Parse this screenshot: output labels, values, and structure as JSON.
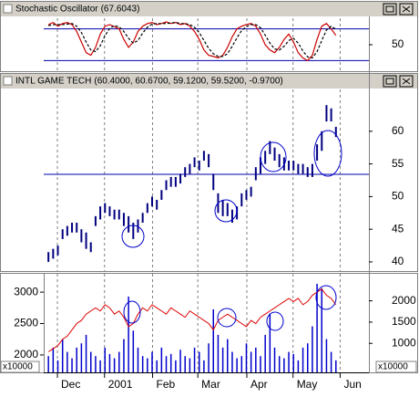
{
  "chart_data": [
    {
      "type": "line",
      "title": "Stochastic Oscillator",
      "subtitle": "(67.6043)",
      "ylim": [
        0,
        100
      ],
      "yticks": [
        50
      ],
      "levels": [
        80,
        20
      ],
      "levels_color": "#0000aa",
      "grid": true,
      "series": [
        {
          "color": "#cc0000",
          "dashed": false,
          "values": [
            88,
            92,
            85,
            90,
            92,
            88,
            75,
            55,
            35,
            30,
            45,
            70,
            85,
            88,
            84,
            80,
            60,
            45,
            55,
            75,
            85,
            90,
            92,
            88,
            90,
            93,
            90,
            92,
            88,
            90,
            85,
            75,
            60,
            40,
            30,
            28,
            25,
            30,
            45,
            65,
            80,
            85,
            88,
            90,
            85,
            70,
            50,
            40,
            35,
            45,
            60,
            70,
            55,
            35,
            25,
            20,
            30,
            60,
            85,
            90,
            80,
            67.6043
          ]
        },
        {
          "color": "#000000",
          "dashed": true,
          "values": [
            86,
            88,
            88,
            88,
            89,
            90,
            85,
            73,
            55,
            40,
            37,
            48,
            67,
            81,
            86,
            84,
            75,
            62,
            53,
            58,
            72,
            83,
            89,
            90,
            90,
            90,
            91,
            92,
            90,
            90,
            88,
            83,
            73,
            58,
            43,
            33,
            28,
            28,
            33,
            47,
            63,
            77,
            84,
            88,
            88,
            82,
            68,
            53,
            42,
            40,
            47,
            58,
            62,
            53,
            38,
            27,
            25,
            37,
            58,
            78,
            85,
            79
          ]
        }
      ]
    },
    {
      "type": "hilo",
      "title": "INTL GAME TECH",
      "subtitle": "(60.4000, 60.6700, 59.1200, 59.5200, -0.9700)",
      "ylim": [
        38.6,
        66.4
      ],
      "yticks": [
        40,
        45,
        50,
        55,
        60
      ],
      "hline": 53.4,
      "hline_color": "#0000aa",
      "color": "#000080",
      "grid": true,
      "high": [
        41.5,
        42,
        42.5,
        45,
        45.5,
        46,
        46,
        45,
        44.5,
        43,
        47,
        48.5,
        49,
        48.5,
        48,
        48,
        47.5,
        47,
        46,
        46.5,
        47.5,
        49,
        50,
        49.5,
        51,
        52.5,
        53,
        53,
        53.5,
        54.5,
        55,
        56,
        55.5,
        57,
        56.5,
        53.5,
        50.5,
        49.5,
        49,
        48,
        48.5,
        50.5,
        51,
        51.5,
        54.5,
        56,
        57,
        58.5,
        57.5,
        56.5,
        56,
        55.5,
        55.5,
        55,
        55,
        54.5,
        55,
        58,
        60,
        64,
        63.5,
        60.67
      ],
      "low": [
        40,
        40.5,
        41,
        43.5,
        44,
        44.5,
        44.5,
        43,
        42,
        41.5,
        45.5,
        46.5,
        47.5,
        47,
        46.5,
        46.5,
        45.5,
        44.5,
        43.5,
        44.5,
        46,
        47.5,
        48.5,
        48,
        49.5,
        51,
        51.5,
        51.5,
        52,
        53,
        53.5,
        54.5,
        54,
        55.5,
        54.5,
        51,
        47.5,
        47,
        47,
        46,
        46.5,
        48.5,
        49.5,
        50,
        52.5,
        53.5,
        55,
        56.5,
        55.5,
        54.5,
        54,
        54,
        54,
        53.5,
        53.5,
        53,
        53,
        55.5,
        57,
        61.5,
        61.5,
        59.12
      ]
    },
    {
      "type": "volume",
      "ylim": [
        1723,
        3292
      ],
      "yticks": [
        2000,
        2500,
        3000
      ],
      "y_unit": "x10000",
      "y2lim": [
        318,
        2636
      ],
      "y2ticks": [
        1000,
        1500,
        2000
      ],
      "y2_unit": "x10000",
      "grid": true,
      "xlim": [
        -1,
        68
      ],
      "xticks": [
        {
          "value": 1.9,
          "label": "Dec"
        },
        {
          "value": 11.9,
          "label": "2001"
        },
        {
          "value": 22.1,
          "label": "Feb"
        },
        {
          "value": 31.7,
          "label": "Mar"
        },
        {
          "value": 42.1,
          "label": "Apr"
        },
        {
          "value": 51.9,
          "label": "May"
        },
        {
          "value": 61.9,
          "label": "Jun"
        }
      ],
      "series": [
        {
          "axis": "y2",
          "kind": "bar",
          "color": "#0000cc",
          "values": [
            700,
            900,
            600,
            1100,
            800,
            650,
            900,
            1000,
            1200,
            800,
            700,
            600,
            900,
            750,
            650,
            800,
            1100,
            2100,
            1300,
            900,
            700,
            650,
            800,
            600,
            900,
            700,
            750,
            600,
            850,
            700,
            650,
            900,
            800,
            600,
            1000,
            1800,
            1200,
            900,
            1100,
            800,
            650,
            700,
            1000,
            800,
            900,
            700,
            1200,
            1700,
            900,
            700,
            650,
            800,
            750,
            600,
            900,
            1000,
            1400,
            2400,
            2300,
            1100,
            800,
            600
          ]
        },
        {
          "axis": "y",
          "kind": "line",
          "color": "#dd0000",
          "values": [
            2050,
            2100,
            2150,
            2250,
            2300,
            2400,
            2500,
            2550,
            2650,
            2700,
            2750,
            2700,
            2800,
            2750,
            2650,
            2700,
            2600,
            2450,
            2500,
            2650,
            2750,
            2700,
            2800,
            2750,
            2700,
            2650,
            2750,
            2700,
            2650,
            2600,
            2700,
            2650,
            2600,
            2550,
            2500,
            2400,
            2550,
            2600,
            2650,
            2600,
            2550,
            2500,
            2450,
            2550,
            2500,
            2600,
            2650,
            2700,
            2750,
            2800,
            2850,
            2900,
            2850,
            2900,
            2800,
            2850,
            2950,
            3000,
            3050,
            2950,
            2900,
            2800
          ]
        }
      ]
    }
  ]
}
